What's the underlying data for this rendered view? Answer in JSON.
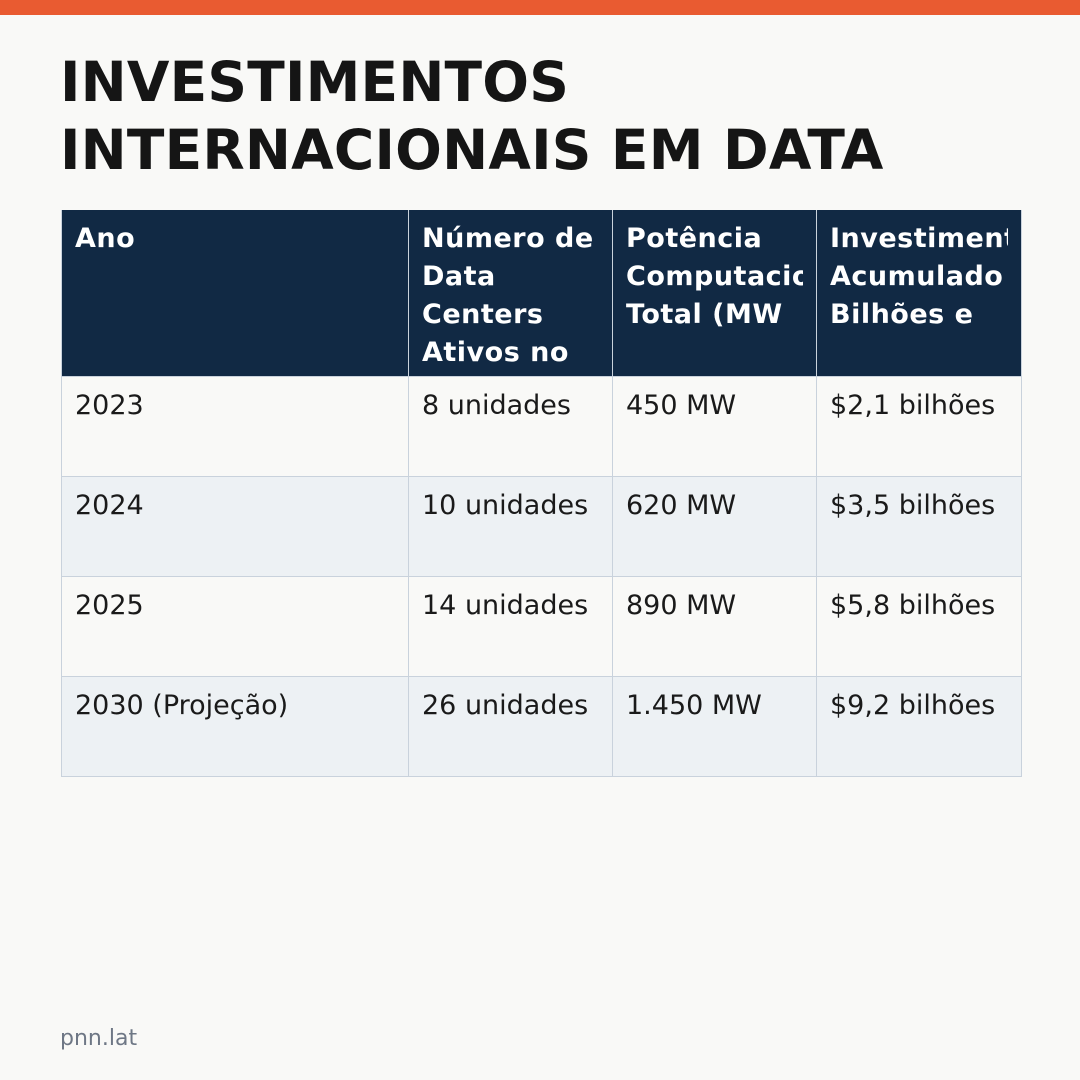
{
  "title": "INVESTIMENTOS INTERNACIONAIS EM DATA",
  "table": {
    "headers": [
      "Ano",
      "Número de Data Centers Ativos no",
      "Potência Computacional Total (MW",
      "Investimento Acumulado Bilhões e"
    ],
    "rows": [
      [
        "2023",
        "8 unidades",
        "450 MW",
        "$2,1 bilhões"
      ],
      [
        "2024",
        "10 unidades",
        "620 MW",
        "$3,5 bilhões"
      ],
      [
        "2025",
        "14 unidades",
        "890 MW",
        "$5,8 bilhões"
      ],
      [
        "2030 (Projeção)",
        "26 unidades",
        "1.450 MW",
        "$9,2 bilhões"
      ]
    ]
  },
  "footer": "pnn.lat",
  "colors": {
    "accent_bar": "#e95b31",
    "header_background": "#112944",
    "stripe_background": "#edf1f4"
  }
}
